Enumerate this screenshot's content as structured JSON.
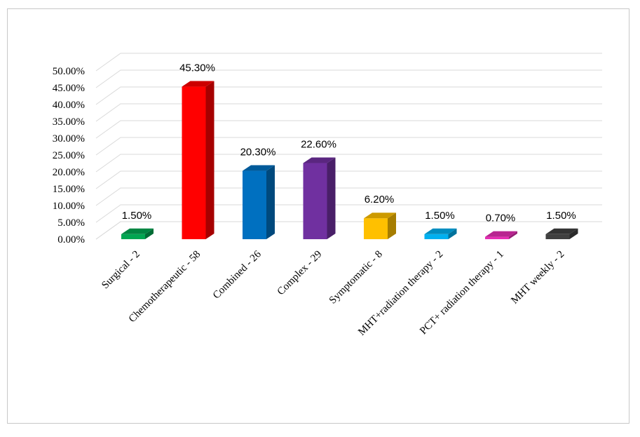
{
  "chart_data": {
    "type": "bar",
    "categories": [
      "Surgical - 2",
      "Chemotherapeutic - 58",
      "Combined - 26",
      "Complex - 29",
      "Symptomatic - 8",
      "MHT+radiation therapy - 2",
      "PCT+ radiation therapy - 1",
      "MHT weekly - 2"
    ],
    "values": [
      1.5,
      45.3,
      20.3,
      22.6,
      6.2,
      1.5,
      0.7,
      1.5
    ],
    "data_labels": [
      "1.50%",
      "45.30%",
      "20.30%",
      "22.60%",
      "6.20%",
      "1.50%",
      "0.70%",
      "1.50%"
    ],
    "colors": [
      "#00a651",
      "#ff0000",
      "#0070c0",
      "#7030a0",
      "#ffc000",
      "#00b0f0",
      "#e62db4",
      "#404040"
    ],
    "ylim": [
      0,
      50
    ],
    "y_ticks": [
      "0.00%",
      "5.00%",
      "10.00%",
      "15.00%",
      "20.00%",
      "25.00%",
      "30.00%",
      "35.00%",
      "40.00%",
      "45.00%",
      "50.00%"
    ],
    "grid": true,
    "style": "3d-column"
  }
}
